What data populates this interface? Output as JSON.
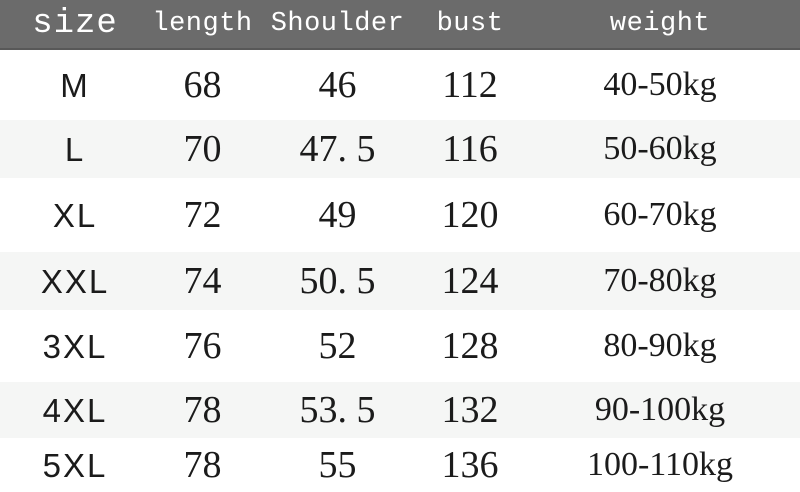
{
  "colors": {
    "header_bg": "#6b6b6b",
    "header_text": "#ffffff",
    "row_stripe": "#f5f6f5",
    "body_text": "#1b1b1b"
  },
  "table": {
    "columns": [
      {
        "key": "size",
        "label": "size"
      },
      {
        "key": "length",
        "label": "length"
      },
      {
        "key": "shoulder",
        "label": "Shoulder"
      },
      {
        "key": "bust",
        "label": "bust"
      },
      {
        "key": "weight",
        "label": "weight"
      }
    ],
    "rows": [
      {
        "size": "M",
        "length": "68",
        "shoulder": "46",
        "bust": "112",
        "weight": "40-50kg"
      },
      {
        "size": "L",
        "length": "70",
        "shoulder": "47. 5",
        "bust": "116",
        "weight": "50-60kg"
      },
      {
        "size": "XL",
        "length": "72",
        "shoulder": "49",
        "bust": "120",
        "weight": "60-70kg"
      },
      {
        "size": "XXL",
        "length": "74",
        "shoulder": "50. 5",
        "bust": "124",
        "weight": "70-80kg"
      },
      {
        "size": "3XL",
        "length": "76",
        "shoulder": "52",
        "bust": "128",
        "weight": "80-90kg"
      },
      {
        "size": "4XL",
        "length": "78",
        "shoulder": "53. 5",
        "bust": "132",
        "weight": "90-100kg"
      },
      {
        "size": "5XL",
        "length": "78",
        "shoulder": "55",
        "bust": "136",
        "weight": "100-110kg"
      }
    ]
  },
  "chart_data": {
    "type": "table",
    "columns": [
      "size",
      "length",
      "Shoulder",
      "bust",
      "weight"
    ],
    "rows": [
      [
        "M",
        68,
        46,
        112,
        "40-50kg"
      ],
      [
        "L",
        70,
        47.5,
        116,
        "50-60kg"
      ],
      [
        "XL",
        72,
        49,
        120,
        "60-70kg"
      ],
      [
        "XXL",
        74,
        50.5,
        124,
        "70-80kg"
      ],
      [
        "3XL",
        76,
        52,
        128,
        "80-90kg"
      ],
      [
        "4XL",
        78,
        53.5,
        132,
        "90-100kg"
      ],
      [
        "5XL",
        78,
        55,
        136,
        "100-110kg"
      ]
    ],
    "layout": {
      "header_background": "#6b6b6b",
      "striped_rows": [
        "L",
        "XXL",
        "4XL"
      ],
      "grid": "off"
    }
  }
}
